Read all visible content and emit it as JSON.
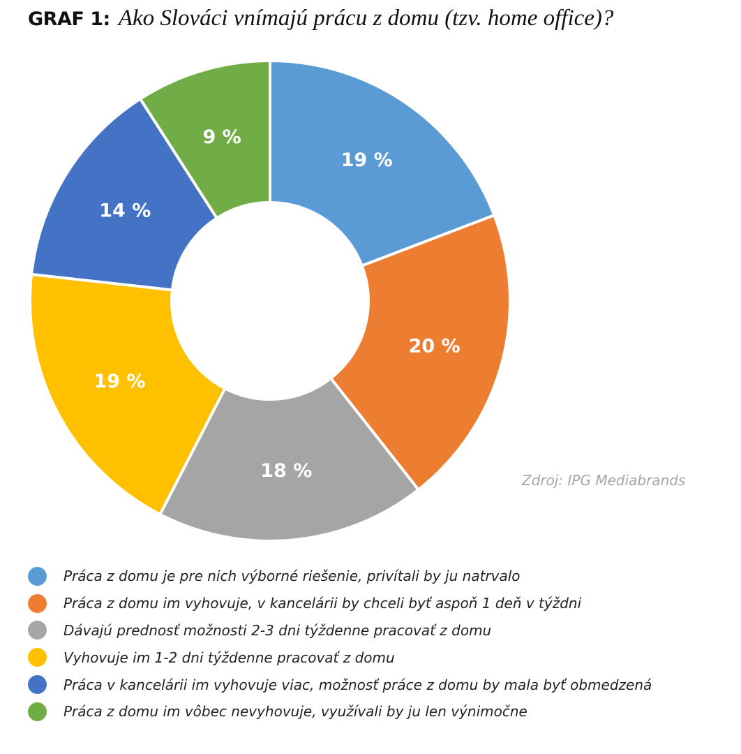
{
  "title": {
    "prefix": "GRAF 1:",
    "text": "Ako Slováci vnímajú prácu z domu (tzv. home office)?"
  },
  "source": "Zdroj: IPG Mediabrands",
  "chart_data": {
    "type": "pie",
    "style": "donut",
    "title": "Ako Slováci vnímajú prácu z domu (tzv. home office)?",
    "legend_position": "bottom",
    "slices": [
      {
        "label": "Práca z domu je pre nich výborné riešenie, privítali by ju natrvalo",
        "value": 19,
        "value_label": "19 %",
        "color": "#5b9bd5"
      },
      {
        "label": "Práca z domu im vyhovuje, v kancelárii by chceli byť aspoň 1 deň v týždni",
        "value": 20,
        "value_label": "20 %",
        "color": "#ed7d31"
      },
      {
        "label": "Dávajú prednosť možnosti 2-3 dni týždenne pracovať z domu",
        "value": 18,
        "value_label": "18 %",
        "color": "#a5a5a5"
      },
      {
        "label": "Vyhovuje im 1-2 dni týždenne pracovať z domu",
        "value": 19,
        "value_label": "19 %",
        "color": "#ffc000"
      },
      {
        "label": "Práca v kancelárii im vyhovuje viac, možnosť práce z domu by mala byť obmedzená",
        "value": 14,
        "value_label": "14 %",
        "color": "#4472c4"
      },
      {
        "label": "Práca z domu im vôbec nevyhovuje, využívali by ju len výnimočne",
        "value": 9,
        "value_label": "9 %",
        "color": "#70ad47"
      }
    ]
  }
}
